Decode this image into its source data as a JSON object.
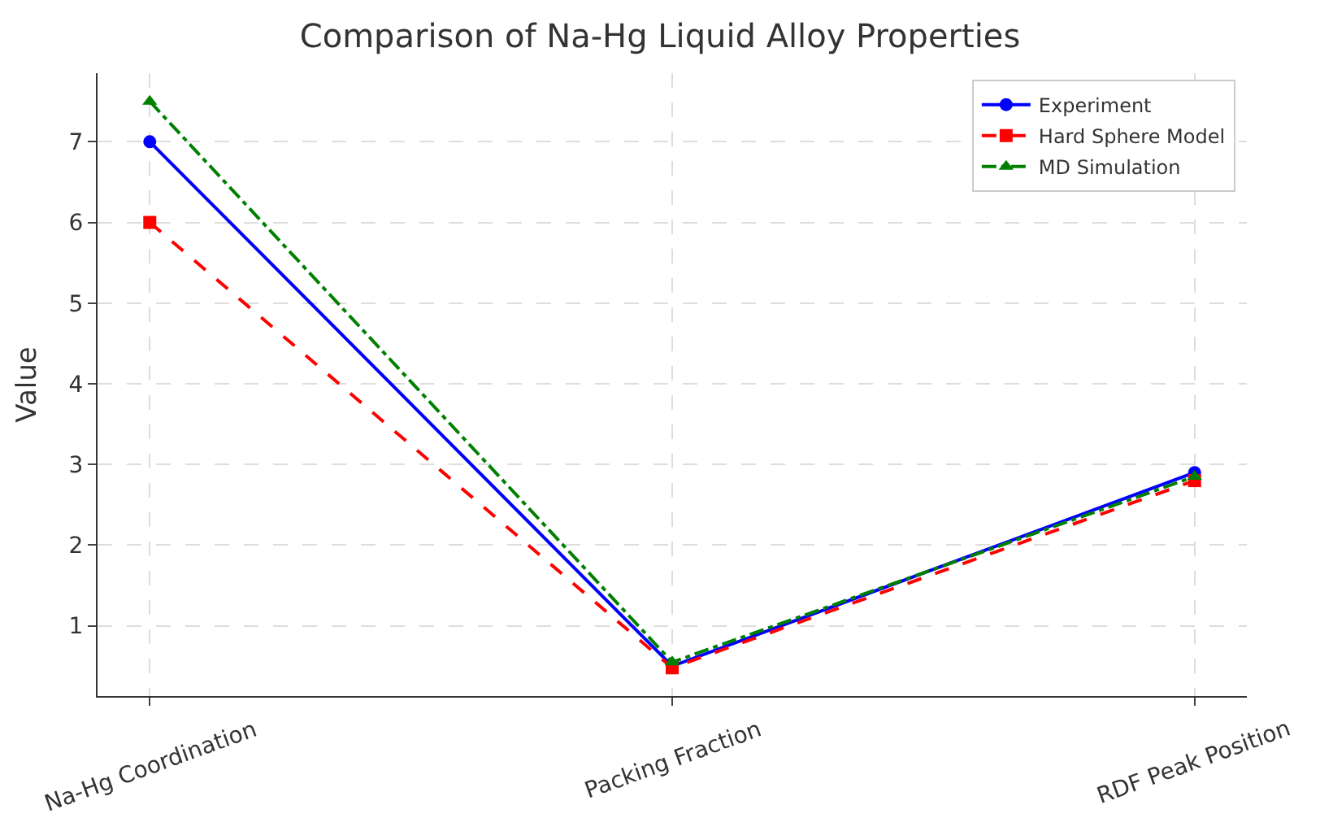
{
  "chart_data": {
    "type": "line",
    "title": "Comparison of Na-Hg Liquid Alloy Properties",
    "ylabel": "Value",
    "categories": [
      "Na-Hg Coordination",
      "Packing Fraction",
      "RDF Peak Position"
    ],
    "series": [
      {
        "name": "Experiment",
        "color": "#0000ff",
        "values": [
          7,
          0.5,
          2.9
        ],
        "marker": "circle",
        "line_style": "solid"
      },
      {
        "name": "Hard Sphere Model",
        "color": "#ff0000",
        "values": [
          6,
          0.48,
          2.8
        ],
        "marker": "square",
        "line_style": "dashed"
      },
      {
        "name": "MD Simulation",
        "color": "#008000",
        "values": [
          7.5,
          0.55,
          2.85
        ],
        "marker": "triangle",
        "line_style": "dashdot"
      }
    ],
    "ylim": [
      0.13,
      7.85
    ],
    "yticks": [
      1,
      2,
      3,
      4,
      5,
      6,
      7
    ],
    "grid": true,
    "legend": "top right"
  }
}
